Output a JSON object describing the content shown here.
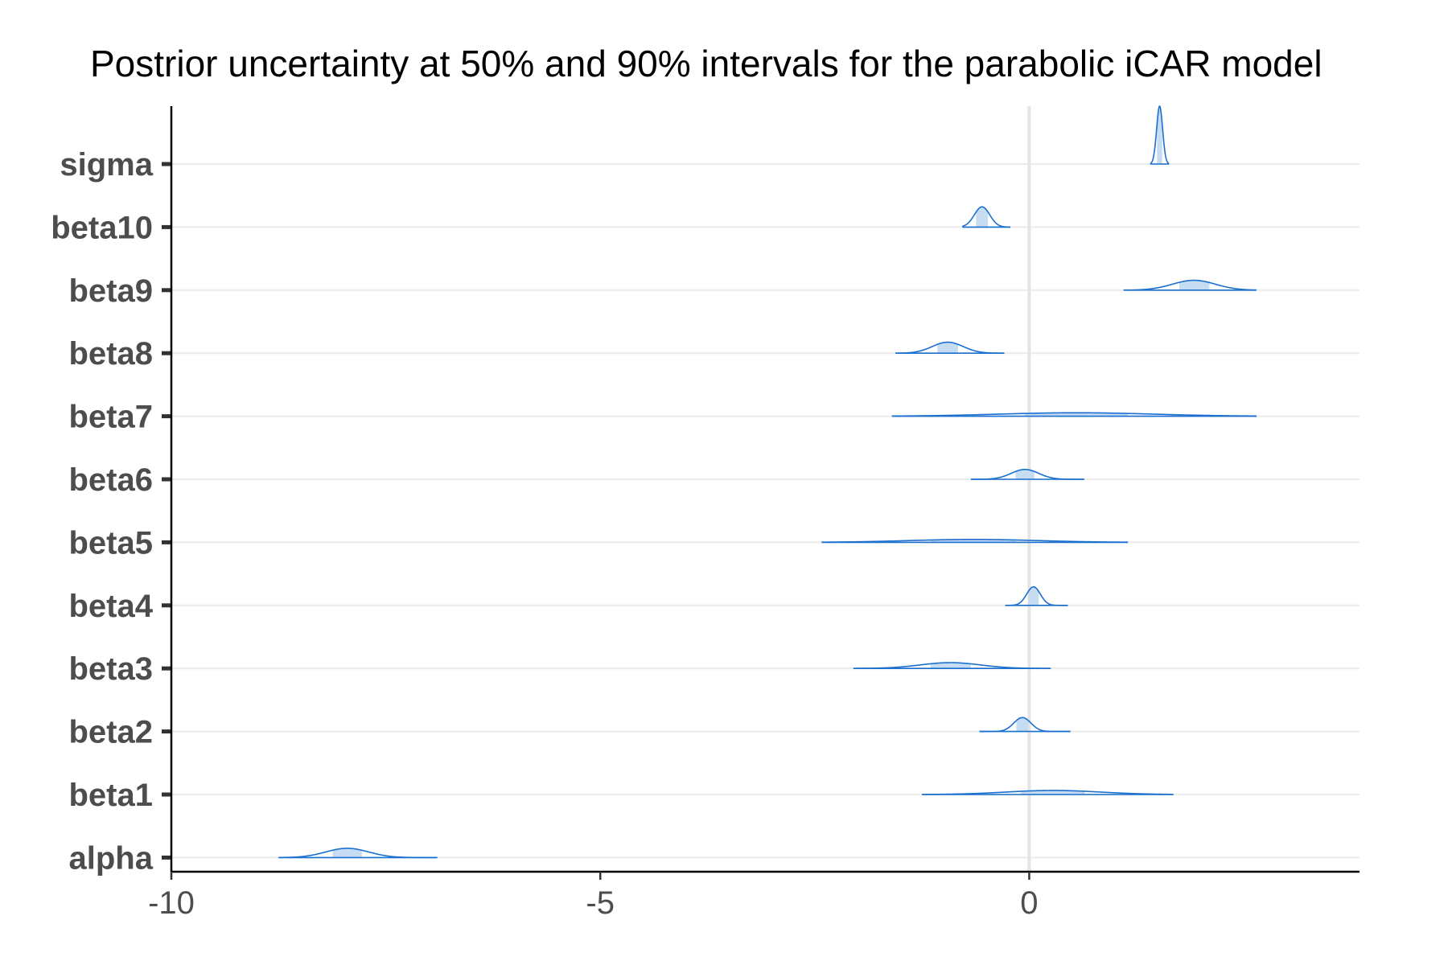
{
  "chart_data": {
    "type": "ridgeline",
    "title": "Postrior uncertainty at 50% and 90% intervals for the parabolic iCAR model",
    "xlabel": "",
    "ylabel": "",
    "xlim": [
      -10,
      3.85
    ],
    "x_ticks": [
      -10,
      -5,
      0
    ],
    "x_tick_labels": [
      "-10",
      "-5",
      "0"
    ],
    "reference_line_x": 0,
    "grid": "horizontal",
    "colors": {
      "density_line": "#1a6fcf",
      "interval_fill": "#c6dcf2",
      "axis": "#000000",
      "grid": "#ebebeb",
      "reference_line": "#e5e5e5",
      "tick_text": "#4d4d4d"
    },
    "parameters": [
      {
        "name": "sigma",
        "mean": 1.52,
        "sd": 0.035,
        "interval_90": [
          1.41,
          1.63
        ],
        "interval_50": [
          1.49,
          1.55
        ],
        "height": 1.0
      },
      {
        "name": "beta10",
        "mean": -0.55,
        "sd": 0.09,
        "interval_90": [
          -0.78,
          -0.22
        ],
        "interval_50": [
          -0.62,
          -0.48
        ],
        "height": 0.35
      },
      {
        "name": "beta9",
        "mean": 1.92,
        "sd": 0.25,
        "interval_90": [
          1.1,
          2.65
        ],
        "interval_50": [
          1.75,
          2.1
        ],
        "height": 0.17
      },
      {
        "name": "beta8",
        "mean": -0.95,
        "sd": 0.18,
        "interval_90": [
          -1.56,
          -0.29
        ],
        "interval_50": [
          -1.07,
          -0.83
        ],
        "height": 0.19
      },
      {
        "name": "beta7",
        "mean": 0.55,
        "sd": 0.9,
        "interval_90": [
          -1.6,
          2.65
        ],
        "interval_50": [
          -0.05,
          1.15
        ],
        "height": 0.06
      },
      {
        "name": "beta6",
        "mean": -0.05,
        "sd": 0.16,
        "interval_90": [
          -0.68,
          0.64
        ],
        "interval_50": [
          -0.16,
          0.06
        ],
        "height": 0.17
      },
      {
        "name": "beta5",
        "mean": -0.65,
        "sd": 0.75,
        "interval_90": [
          -2.42,
          1.15
        ],
        "interval_50": [
          -1.15,
          -0.15
        ],
        "height": 0.05
      },
      {
        "name": "beta4",
        "mean": 0.05,
        "sd": 0.08,
        "interval_90": [
          -0.28,
          0.45
        ],
        "interval_50": [
          -0.01,
          0.11
        ],
        "height": 0.32
      },
      {
        "name": "beta3",
        "mean": -0.92,
        "sd": 0.35,
        "interval_90": [
          -2.05,
          0.25
        ],
        "interval_50": [
          -1.15,
          -0.68
        ],
        "height": 0.1
      },
      {
        "name": "beta2",
        "mean": -0.08,
        "sd": 0.1,
        "interval_90": [
          -0.58,
          0.48
        ],
        "interval_50": [
          -0.15,
          -0.01
        ],
        "height": 0.24
      },
      {
        "name": "beta1",
        "mean": 0.28,
        "sd": 0.55,
        "interval_90": [
          -1.25,
          1.68
        ],
        "interval_50": [
          -0.1,
          0.65
        ],
        "height": 0.07
      },
      {
        "name": "alpha",
        "mean": -7.95,
        "sd": 0.25,
        "interval_90": [
          -8.75,
          -6.9
        ],
        "interval_50": [
          -8.12,
          -7.78
        ],
        "height": 0.16
      }
    ]
  }
}
